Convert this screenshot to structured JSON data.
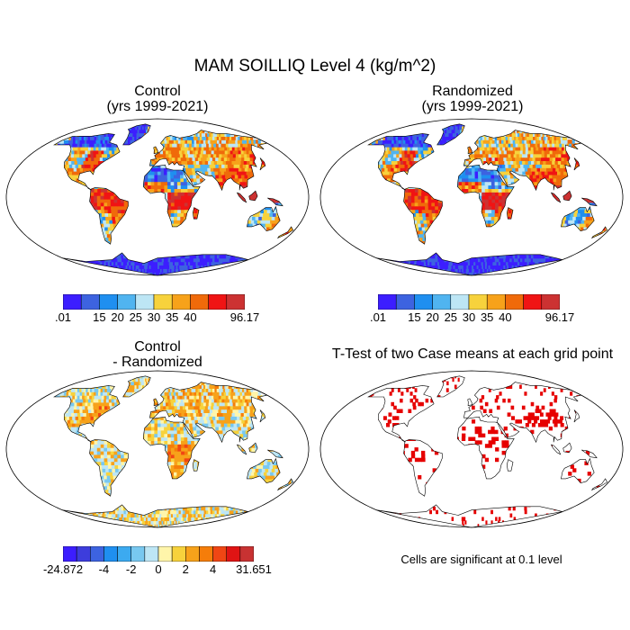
{
  "title": "MAM SOILLIQ Level 4 (kg/m^2)",
  "panels": {
    "control": {
      "title_line1": "Control",
      "title_line2": "(yrs 1999-2021)"
    },
    "randomized": {
      "title_line1": "Randomized",
      "title_line2": "(yrs 1999-2021)"
    },
    "difference": {
      "title_line1": "Control",
      "title_line2": "- Randomized"
    },
    "ttest": {
      "title": "T-Test of two Case means at each grid point",
      "note": "Cells are significant at 0.1 level"
    }
  },
  "chart_data": [
    {
      "type": "heatmap",
      "name": "control",
      "title": "Control (yrs 1999-2021)",
      "colorbar": {
        "colors": [
          "#3c1eff",
          "#3d63e0",
          "#1f8ff0",
          "#50b4f0",
          "#bde6f5",
          "#f7d23c",
          "#f7a21a",
          "#f06a0a",
          "#f01414",
          "#cc3232"
        ],
        "labels": [
          ".01",
          "15",
          "20",
          "25",
          "30",
          "35",
          "40",
          "96.17"
        ],
        "label_slots": [
          0,
          2,
          3,
          4,
          5,
          6,
          7,
          10
        ]
      }
    },
    {
      "type": "heatmap",
      "name": "randomized",
      "title": "Randomized (yrs 1999-2021)",
      "colorbar": {
        "colors": [
          "#3c1eff",
          "#3d63e0",
          "#1f8ff0",
          "#50b4f0",
          "#bde6f5",
          "#f7d23c",
          "#f7a21a",
          "#f06a0a",
          "#f01414",
          "#cc3232"
        ],
        "labels": [
          ".01",
          "15",
          "20",
          "25",
          "30",
          "35",
          "40",
          "96.17"
        ],
        "label_slots": [
          0,
          2,
          3,
          4,
          5,
          6,
          7,
          10
        ]
      }
    },
    {
      "type": "heatmap",
      "name": "difference",
      "title": "Control - Randomized",
      "colorbar": {
        "colors": [
          "#3c1eff",
          "#3d3ddc",
          "#3d63e0",
          "#1f8ff0",
          "#3caaf0",
          "#78c8f0",
          "#bde6f5",
          "#fff5aa",
          "#f7d23c",
          "#f7a21a",
          "#f57d0a",
          "#f04614",
          "#e01414",
          "#c83232"
        ],
        "labels": [
          "-24.872",
          "-4",
          "-2",
          "0",
          "2",
          "4",
          "31.651"
        ],
        "label_slots": [
          0,
          3,
          5,
          7,
          9,
          11,
          14
        ]
      }
    },
    {
      "type": "heatmap",
      "name": "ttest",
      "title": "T-Test of two Case means at each grid point",
      "significance_level": 0.1,
      "color": "#e60000"
    }
  ],
  "colors": {
    "ocean": "#ffffff",
    "coast": "#000000",
    "significant": "#e60000"
  }
}
